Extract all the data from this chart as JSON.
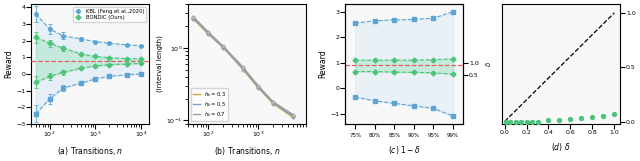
{
  "panel_a": {
    "n_values": [
      50,
      100,
      200,
      500,
      1000,
      2000,
      5000,
      10000
    ],
    "kbl_upper": [
      3.6,
      2.7,
      2.3,
      2.1,
      1.95,
      1.85,
      1.75,
      1.7
    ],
    "kbl_lower": [
      -2.4,
      -1.5,
      -0.85,
      -0.55,
      -0.3,
      -0.15,
      -0.05,
      0.0
    ],
    "kbl_err_up": [
      0.5,
      0.3,
      0.2,
      0.1,
      0.06,
      0.04,
      0.02,
      0.02
    ],
    "kbl_err_lo": [
      0.5,
      0.3,
      0.2,
      0.1,
      0.06,
      0.04,
      0.02,
      0.02
    ],
    "bon_upper": [
      2.2,
      1.85,
      1.55,
      1.2,
      1.05,
      0.98,
      0.92,
      0.9
    ],
    "bon_lower": [
      -0.5,
      -0.15,
      0.1,
      0.35,
      0.48,
      0.55,
      0.6,
      0.63
    ],
    "bon_err_up": [
      0.35,
      0.2,
      0.15,
      0.08,
      0.04,
      0.03,
      0.02,
      0.01
    ],
    "bon_err_lo": [
      0.35,
      0.2,
      0.15,
      0.08,
      0.04,
      0.03,
      0.02,
      0.01
    ],
    "true_reward": 0.75,
    "ylabel": "Reward",
    "title": "(a) Transitions, $n$",
    "xlim": [
      40,
      15000
    ],
    "ylim": [
      -3.0,
      4.2
    ]
  },
  "panel_b": {
    "n_values": [
      50,
      100,
      200,
      500,
      1000,
      2000,
      5000
    ],
    "hk03": [
      2.5,
      1.55,
      1.0,
      0.5,
      0.28,
      0.17,
      0.11
    ],
    "hk05": [
      2.6,
      1.6,
      1.02,
      0.52,
      0.29,
      0.175,
      0.115
    ],
    "hk07": [
      2.7,
      1.65,
      1.05,
      0.54,
      0.3,
      0.18,
      0.12
    ],
    "ylabel": "(Interval length)",
    "title": "(b) Transitions, $n$",
    "xlim": [
      40,
      9000
    ],
    "ylim_log": [
      0.09,
      4.0
    ]
  },
  "panel_c": {
    "delta_vals": [
      0,
      1,
      2,
      3,
      4,
      5
    ],
    "kbl_upper": [
      2.55,
      2.65,
      2.68,
      2.7,
      2.75,
      3.0
    ],
    "kbl_lower": [
      -0.35,
      -0.5,
      -0.6,
      -0.7,
      -0.8,
      -1.1
    ],
    "bon_upper": [
      1.1,
      1.1,
      1.1,
      1.1,
      1.12,
      1.15
    ],
    "bon_lower": [
      0.65,
      0.65,
      0.63,
      0.62,
      0.6,
      0.55
    ],
    "true_reward": 0.9,
    "ylabel": "Reward",
    "title": "$(c)$ $1-\\delta$",
    "xlim_labels": [
      "75%",
      "80%",
      "85%",
      "90%",
      "95%",
      "99%"
    ],
    "ylim": [
      -1.4,
      3.3
    ],
    "right_yticks": [
      0.5,
      1.0
    ],
    "right_ylabel": "$\\delta$"
  },
  "panel_d": {
    "delta_vals": [
      0.01,
      0.05,
      0.1,
      0.15,
      0.2,
      0.25,
      0.3,
      0.4,
      0.5,
      0.6,
      0.7,
      0.8,
      0.9,
      1.0
    ],
    "diag": [
      0.0,
      1.0
    ],
    "bon_coverage": [
      0.0,
      0.0,
      0.0,
      0.0,
      0.0,
      0.0,
      0.0,
      0.01,
      0.01,
      0.02,
      0.03,
      0.04,
      0.05,
      0.07
    ],
    "title": "$(d)$ $\\delta$",
    "xlim": [
      -0.02,
      1.05
    ],
    "ylim": [
      -0.02,
      1.08
    ]
  },
  "colors": {
    "kbl_blue": "#5BA4D4",
    "kbl_blue_fill": "#ADD8F0",
    "bon_green": "#4CC47A",
    "bon_green_fill": "#95E0B8",
    "true_red": "#E06060",
    "hk03": "#C8A43A",
    "hk05": "#7B9ED9",
    "hk07": "#9E9E9E",
    "bg": "#F8F8F8"
  }
}
